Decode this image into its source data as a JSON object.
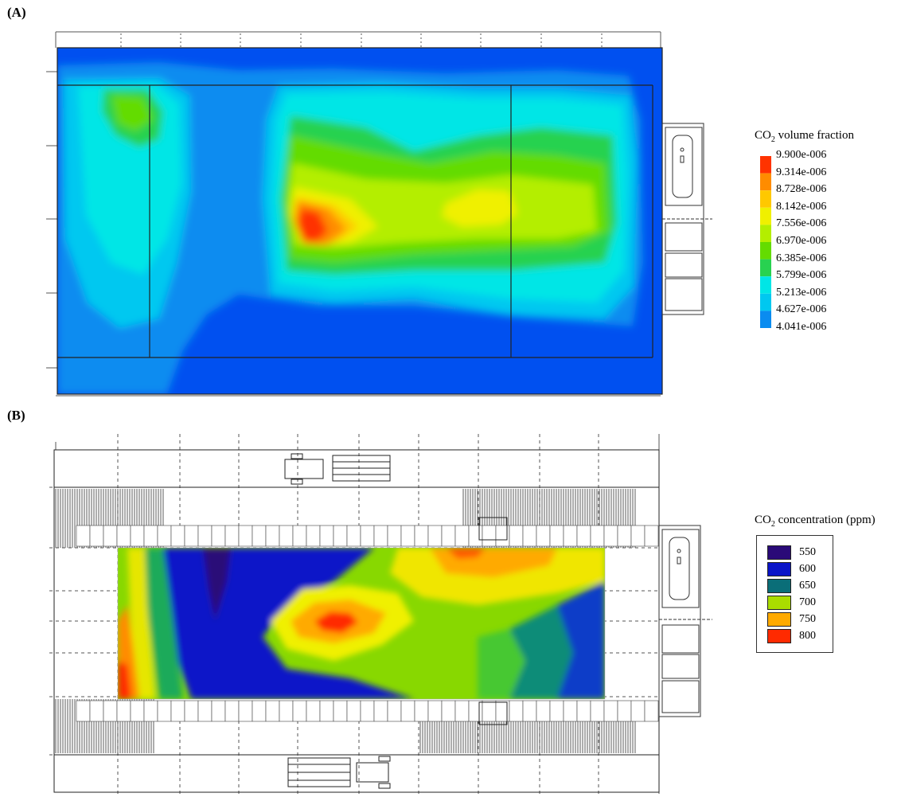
{
  "panels": {
    "a_label": "(A)",
    "b_label": "(B)"
  },
  "chart_data": [
    {
      "type": "heatmap",
      "panel": "(A)",
      "title": "",
      "colorbar": {
        "title_prefix": "CO",
        "title_sub": "2",
        "title_suffix": " volume fraction",
        "levels": [
          "9.900e-006",
          "9.314e-006",
          "8.728e-006",
          "8.142e-006",
          "7.556e-006",
          "6.970e-006",
          "6.385e-006",
          "5.799e-006",
          "5.213e-006",
          "4.627e-006",
          "4.041e-006"
        ],
        "colors": [
          "#ff3300",
          "#ff8c00",
          "#ffc800",
          "#f0f000",
          "#b4ee00",
          "#64dc00",
          "#28d250",
          "#00e6e6",
          "#00c8f0",
          "#0a8cf0",
          "#0050f0"
        ]
      },
      "hotspot": "left-center"
    },
    {
      "type": "heatmap",
      "panel": "(B)",
      "title": "",
      "colorbar": {
        "title_prefix": "CO",
        "title_sub": "2",
        "title_suffix": " concentration (ppm)",
        "levels": [
          "550",
          "600",
          "650",
          "700",
          "750",
          "800"
        ],
        "colors": [
          "#2a0a78",
          "#0a14c8",
          "#0a6e78",
          "#aadc00",
          "#ffaa00",
          "#ff2a00"
        ]
      },
      "hotspot": "center"
    }
  ]
}
